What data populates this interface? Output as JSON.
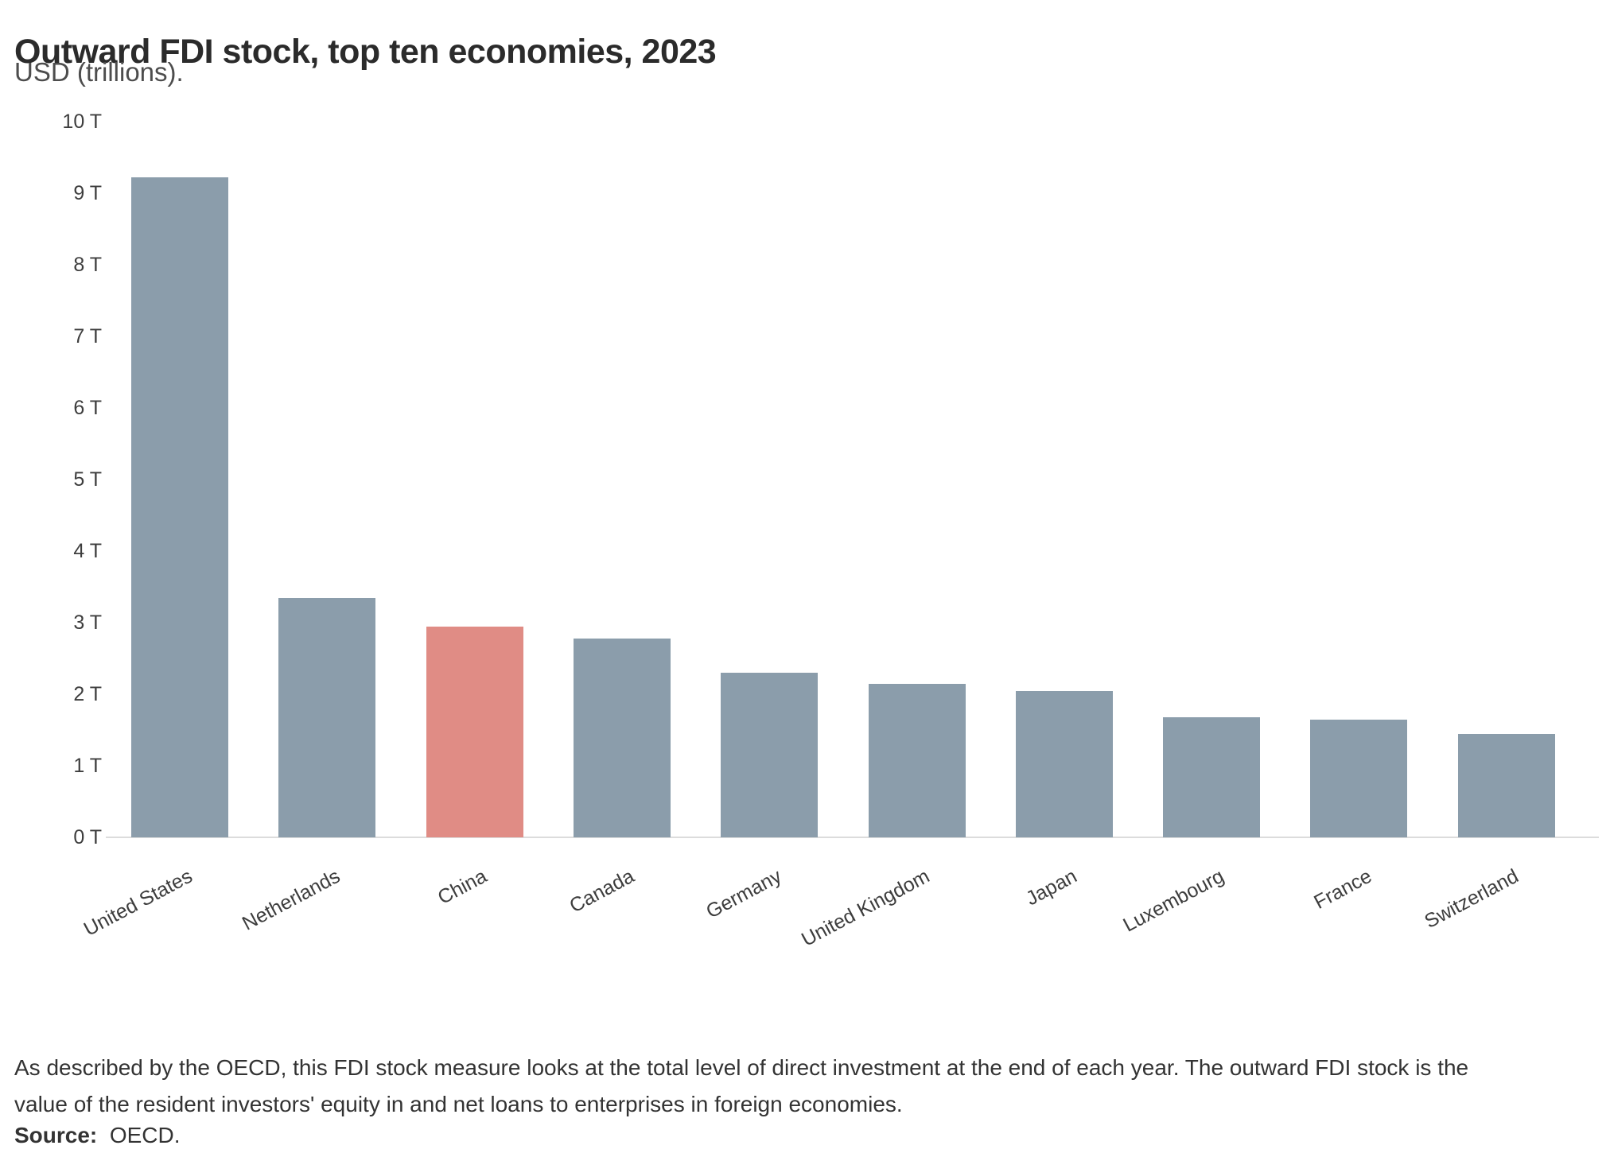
{
  "header": {
    "title": "Outward FDI stock, top ten economies, 2023",
    "subtitle": "USD (trillions)."
  },
  "chart_data": {
    "type": "bar",
    "title": "Outward FDI stock, top ten economies, 2023",
    "subtitle": "USD (trillions).",
    "categories": [
      "United States",
      "Netherlands",
      "China",
      "Canada",
      "Germany",
      "United Kingdom",
      "Japan",
      "Luxembourg",
      "France",
      "Switzerland"
    ],
    "values": [
      9.22,
      3.35,
      2.94,
      2.78,
      2.3,
      2.14,
      2.04,
      1.68,
      1.64,
      1.45
    ],
    "unit": "USD trillions",
    "xlabel": "",
    "ylabel": "",
    "ylim": [
      0,
      10
    ],
    "yticks": [
      0,
      1,
      2,
      3,
      4,
      5,
      6,
      7,
      8,
      9,
      10
    ],
    "ytick_suffix": " T",
    "grid": false,
    "legend": "none",
    "highlight_index": 2,
    "x_label_rotation_deg": -28,
    "colors": {
      "bar": "#8b9dab",
      "highlight": "#e08c85",
      "axis_line": "#dcdcdc",
      "tick_text": "#3d3d3d"
    }
  },
  "footer": {
    "note": "As described by the OECD, this FDI stock measure looks at the total level of direct investment at the end of each year. The outward FDI stock is the value of the resident investors' equity in and net loans to enterprises in foreign economies.",
    "source_label": "Source:",
    "source_value": "OECD."
  }
}
